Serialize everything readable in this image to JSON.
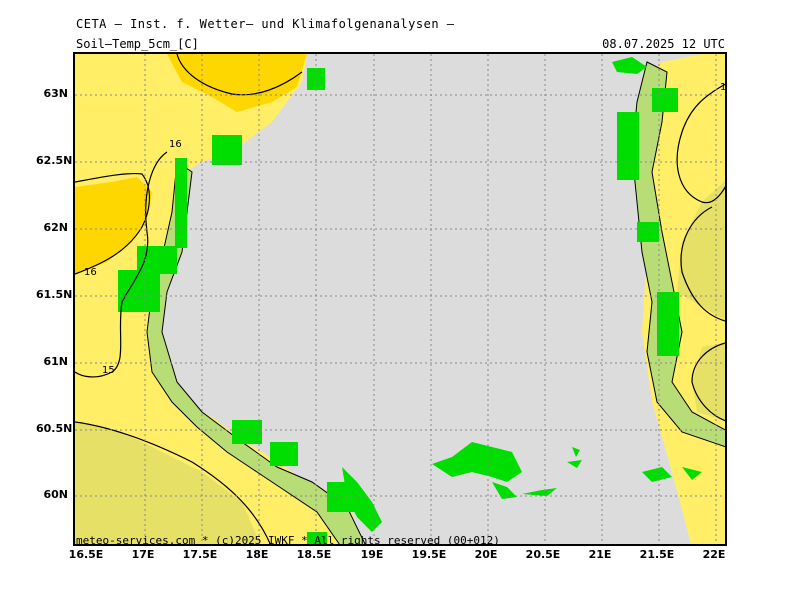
{
  "header": {
    "title": "CETA — Inst. f. Wetter— und Klimafolgenanalysen —",
    "parameter": "Soil—Temp_5cm_[C]",
    "valid_time": "08.07.2025  12 UTC"
  },
  "footer": {
    "credit": "meteo-services.com * (c)2025 IWKF * All rights reserved (00+012)"
  },
  "axes": {
    "lat_labels": [
      "63N",
      "62.5N",
      "62N",
      "61.5N",
      "61N",
      "60.5N",
      "60N"
    ],
    "lon_labels": [
      "16.5E",
      "17E",
      "17.5E",
      "18E",
      "18.5E",
      "19E",
      "19.5E",
      "20E",
      "20.5E",
      "21E",
      "21.5E",
      "22E"
    ]
  },
  "contours": {
    "labels": [
      "16",
      "16",
      "15",
      "1"
    ]
  },
  "colors": {
    "sea": "#dcdcdc",
    "land_warm_15": "#ffee66",
    "land_warm_16": "#ffd700",
    "land_cool_14": "#e6e066",
    "coast_green": "#00dd00",
    "light_green": "#99e699",
    "contour": "#000000",
    "grid": "#888888"
  }
}
